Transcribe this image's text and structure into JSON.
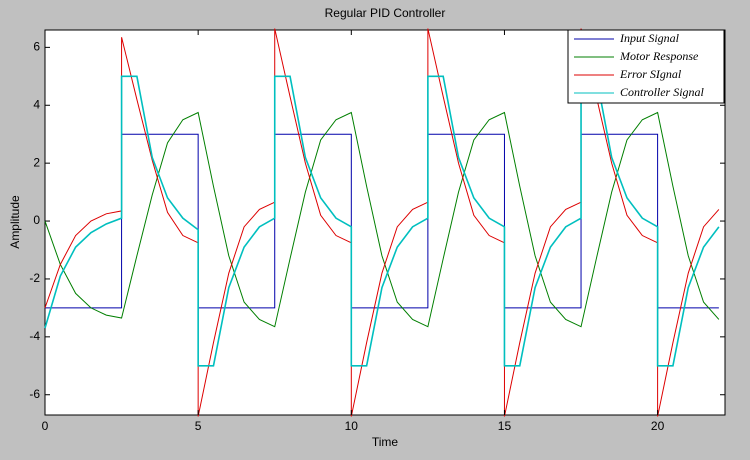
{
  "chart_data": {
    "type": "line",
    "title": "Regular PID Controller",
    "x_label": "Time",
    "y_label": "Amplitude",
    "x": [
      0,
      0.5,
      1,
      1.5,
      2,
      2.5,
      2.5,
      3,
      3.5,
      4,
      4.5,
      5,
      5,
      5.5,
      6,
      6.5,
      7,
      7.5,
      7.5,
      8,
      8.5,
      9,
      9.5,
      10,
      10,
      10.5,
      11,
      11.5,
      12,
      12.5,
      12.5,
      13,
      13.5,
      14,
      14.5,
      15,
      15,
      15.5,
      16,
      16.5,
      17,
      17.5,
      17.5,
      18,
      18.5,
      19,
      19.5,
      20,
      20,
      20.5,
      21,
      21.5,
      22
    ],
    "series": [
      {
        "name": "Input Signal",
        "color": "#0000aa",
        "values": [
          -3,
          -3,
          -3,
          -3,
          -3,
          -3,
          3,
          3,
          3,
          3,
          3,
          3,
          -3,
          -3,
          -3,
          -3,
          -3,
          -3,
          3,
          3,
          3,
          3,
          3,
          3,
          -3,
          -3,
          -3,
          -3,
          -3,
          -3,
          3,
          3,
          3,
          3,
          3,
          3,
          -3,
          -3,
          -3,
          -3,
          -3,
          -3,
          3,
          3,
          3,
          3,
          3,
          3,
          -3,
          -3,
          -3,
          -3,
          -3
        ]
      },
      {
        "name": "Motor Response",
        "color": "#007f00",
        "values": [
          0,
          -1.5,
          -2.5,
          -3,
          -3.25,
          -3.35,
          -3.35,
          -1.2,
          0.9,
          2.7,
          3.5,
          3.75,
          3.75,
          1.2,
          -1.2,
          -2.8,
          -3.4,
          -3.65,
          -3.65,
          -1.3,
          1,
          2.8,
          3.5,
          3.75,
          3.75,
          1.2,
          -1.2,
          -2.8,
          -3.4,
          -3.65,
          -3.65,
          -1.3,
          1,
          2.8,
          3.5,
          3.75,
          3.75,
          1.2,
          -1.2,
          -2.8,
          -3.4,
          -3.65,
          -3.65,
          -1.3,
          1,
          2.8,
          3.5,
          3.75,
          3.75,
          1.2,
          -1.2,
          -2.8,
          -3.4
        ]
      },
      {
        "name": "Error SIgnal",
        "color": "#dd0000",
        "values": [
          -3,
          -1.5,
          -0.5,
          0,
          0.25,
          0.35,
          6.35,
          4.2,
          2.1,
          0.3,
          -0.5,
          -0.75,
          -6.75,
          -4.2,
          -1.8,
          -0.2,
          0.4,
          0.65,
          6.65,
          4.3,
          2,
          0.2,
          -0.5,
          -0.75,
          -6.75,
          -4.2,
          -1.8,
          -0.2,
          0.4,
          0.65,
          6.65,
          4.3,
          2,
          0.2,
          -0.5,
          -0.75,
          -6.75,
          -4.2,
          -1.8,
          -0.2,
          0.4,
          0.65,
          6.65,
          4.3,
          2,
          0.2,
          -0.5,
          -0.75,
          -6.75,
          -4.2,
          -1.8,
          -0.2,
          0.4
        ]
      },
      {
        "name": "Controller Signal",
        "color": "#00bfbf",
        "values": [
          -3.7,
          -1.9,
          -0.9,
          -0.4,
          -0.1,
          0.1,
          5,
          5,
          2.2,
          0.8,
          0.1,
          -0.3,
          -5,
          -5,
          -2.3,
          -0.9,
          -0.2,
          0.1,
          5,
          5,
          2.2,
          0.8,
          0.1,
          -0.2,
          -5,
          -5,
          -2.3,
          -0.9,
          -0.2,
          0.1,
          5,
          5,
          2.2,
          0.8,
          0.1,
          -0.2,
          -5,
          -5,
          -2.3,
          -0.9,
          -0.2,
          0.1,
          5,
          5,
          2.2,
          0.8,
          0.1,
          -0.2,
          -5,
          -5,
          -2.3,
          -0.9,
          -0.2
        ]
      }
    ],
    "xlim": [
      0,
      22.2
    ],
    "ylim": [
      -6.7,
      6.6
    ],
    "xticks": [
      0,
      5,
      10,
      15,
      20
    ],
    "yticks": [
      -6,
      -4,
      -2,
      0,
      2,
      4,
      6
    ],
    "legend": "northeast",
    "grid": false
  }
}
